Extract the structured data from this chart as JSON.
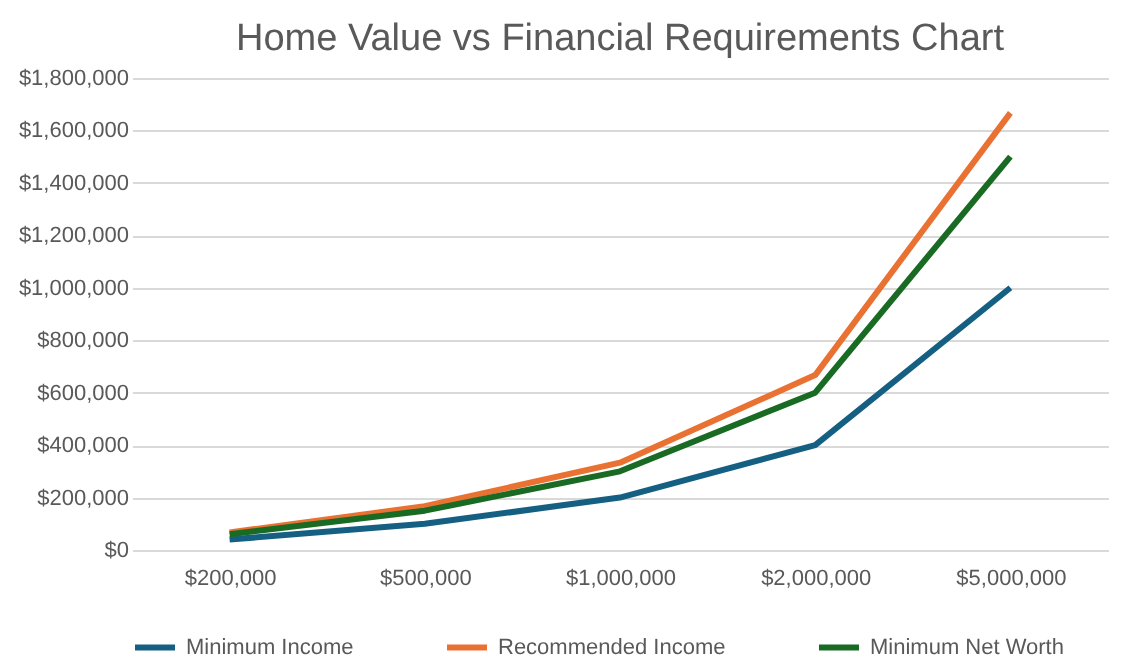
{
  "chart_data": {
    "type": "line",
    "title": "Home Value vs Financial Requirements Chart",
    "categories": [
      "$200,000",
      "$500,000",
      "$1,000,000",
      "$2,000,000",
      "$5,000,000"
    ],
    "series": [
      {
        "name": "Minimum Income",
        "color": "#156082",
        "values": [
          40000,
          100000,
          200000,
          400000,
          1000000
        ]
      },
      {
        "name": "Recommended Income",
        "color": "#e97132",
        "values": [
          67000,
          167000,
          333000,
          667000,
          1667000
        ]
      },
      {
        "name": "Minimum Net Worth",
        "color": "#196b24",
        "values": [
          60000,
          150000,
          300000,
          600000,
          1500000
        ]
      }
    ],
    "ylim": [
      0,
      1800000
    ],
    "yticks": [
      {
        "value": 0,
        "label": "$0"
      },
      {
        "value": 200000,
        "label": "$200,000"
      },
      {
        "value": 400000,
        "label": "$400,000"
      },
      {
        "value": 600000,
        "label": "$600,000"
      },
      {
        "value": 800000,
        "label": "$800,000"
      },
      {
        "value": 1000000,
        "label": "$1,000,000"
      },
      {
        "value": 1200000,
        "label": "$1,200,000"
      },
      {
        "value": 1400000,
        "label": "$1,400,000"
      },
      {
        "value": 1600000,
        "label": "$1,600,000"
      },
      {
        "value": 1800000,
        "label": "$1,800,000"
      }
    ],
    "grid": "y",
    "legend": "bottom",
    "marker": "none",
    "line_style": "solid"
  }
}
